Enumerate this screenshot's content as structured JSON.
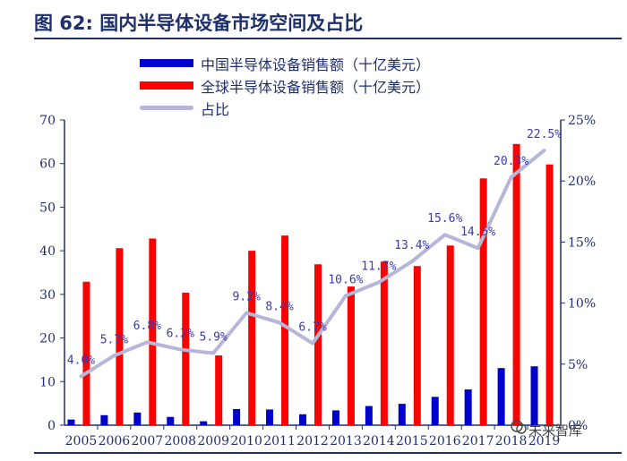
{
  "header": {
    "title": "图 62:  国内半导体设备市场空间及占比"
  },
  "watermark": {
    "text": "未来智库"
  },
  "chart_data": {
    "type": "bar",
    "title": "",
    "xlabel": "",
    "ylabel": "",
    "ylim": [
      0,
      70
    ],
    "y2lim": [
      0,
      25
    ],
    "y_ticks": [
      "0",
      "10",
      "20",
      "30",
      "40",
      "50",
      "60",
      "70"
    ],
    "y2_ticks": [
      "0%",
      "5%",
      "10%",
      "15%",
      "20%",
      "25%"
    ],
    "legend_position": "top",
    "categories": [
      "2005",
      "2006",
      "2007",
      "2008",
      "2009",
      "2010",
      "2011",
      "2012",
      "2013",
      "2014",
      "2015",
      "2016",
      "2017",
      "2018",
      "2019"
    ],
    "series": [
      {
        "name": "中国半导体设备销售额（十亿美元）",
        "type": "bar",
        "color": "#0000cc",
        "values": [
          1.3,
          2.3,
          2.9,
          1.9,
          0.9,
          3.7,
          3.6,
          2.5,
          3.4,
          4.4,
          4.9,
          6.5,
          8.2,
          13.1,
          13.5
        ]
      },
      {
        "name": "全球半导体设备销售额（十亿美元）",
        "type": "bar",
        "color": "#ff0000",
        "values": [
          32.9,
          40.6,
          42.8,
          30.4,
          16.0,
          40.0,
          43.5,
          36.9,
          31.8,
          37.5,
          36.5,
          41.2,
          56.6,
          64.5,
          59.8
        ]
      },
      {
        "name": "占比",
        "type": "line",
        "axis": "right",
        "color": "#b6b6d8",
        "values": [
          4.0,
          5.7,
          6.8,
          6.2,
          5.9,
          9.2,
          8.4,
          6.7,
          10.6,
          11.7,
          13.4,
          15.6,
          14.5,
          20.3,
          22.5
        ],
        "labels": [
          "4.0%",
          "5.7%",
          "6.8%",
          "6.2%",
          "5.9%",
          "9.2%",
          "8.4%",
          "6.7%",
          "10.6%",
          "11.7%",
          "13.4%",
          "15.6%",
          "14.5%",
          "20.3%",
          "22.5%"
        ]
      }
    ]
  }
}
